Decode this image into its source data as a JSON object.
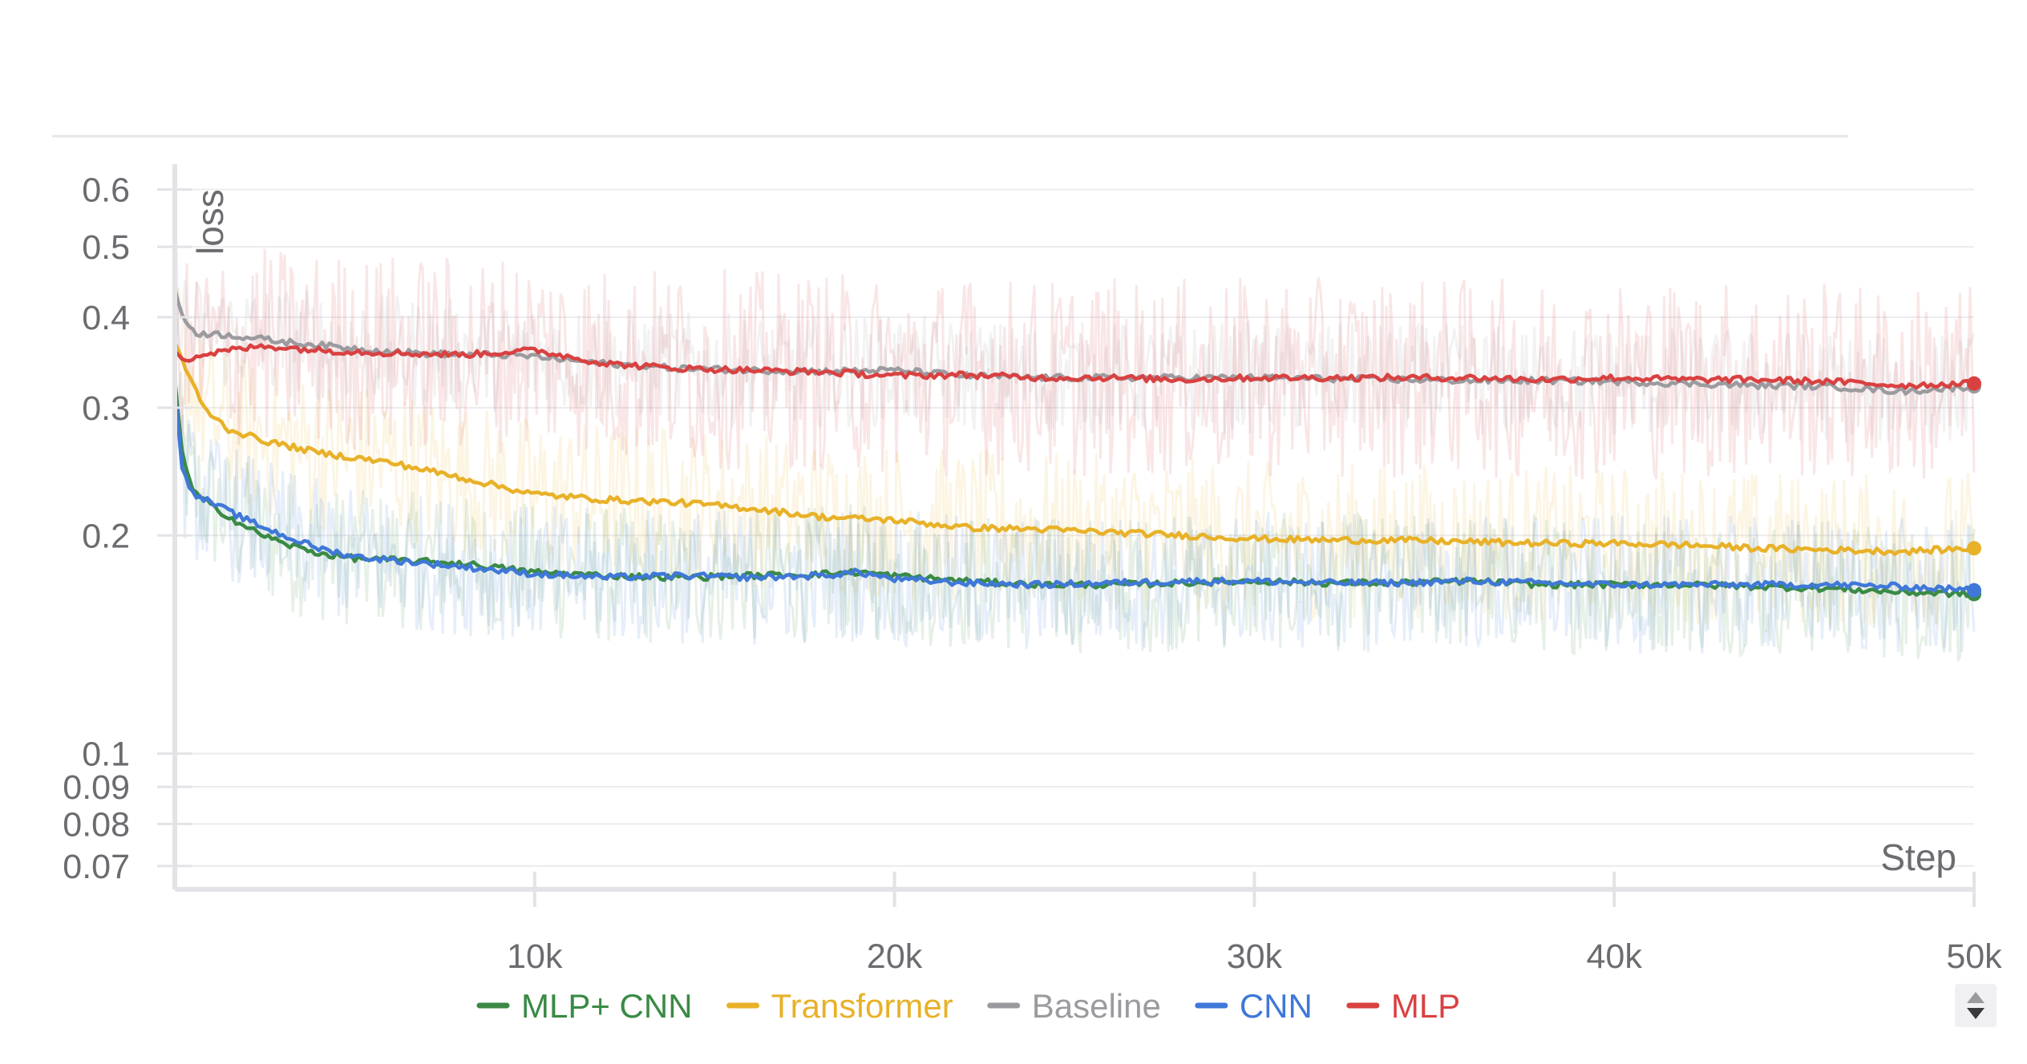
{
  "chart_data": {
    "type": "line",
    "title": "",
    "xlabel": "Step",
    "ylabel": "loss",
    "xlim": [
      0,
      50000
    ],
    "ylim": [
      0.065,
      0.65
    ],
    "yscale": "log",
    "grid": true,
    "x_ticks": [
      {
        "value": 10000,
        "label": "10k"
      },
      {
        "value": 20000,
        "label": "20k"
      },
      {
        "value": 30000,
        "label": "30k"
      },
      {
        "value": 40000,
        "label": "40k"
      },
      {
        "value": 50000,
        "label": "50k"
      }
    ],
    "y_ticks": [
      {
        "value": 0.6,
        "label": "0.6"
      },
      {
        "value": 0.5,
        "label": "0.5"
      },
      {
        "value": 0.4,
        "label": "0.4"
      },
      {
        "value": 0.3,
        "label": "0.3"
      },
      {
        "value": 0.2,
        "label": "0.2"
      },
      {
        "value": 0.1,
        "label": "0.1"
      },
      {
        "value": 0.09,
        "label": "0.09"
      },
      {
        "value": 0.08,
        "label": "0.08"
      },
      {
        "value": 0.07,
        "label": "0.07"
      }
    ],
    "legend_position": "bottom",
    "series": [
      {
        "name": "MLP+ CNN",
        "color": "#3a8a45",
        "x": [
          0,
          200,
          500,
          1000,
          2000,
          3000,
          4000,
          5000,
          6000,
          8000,
          10000,
          12000,
          14000,
          16000,
          18000,
          19000,
          20000,
          22000,
          24000,
          26000,
          28000,
          30000,
          32000,
          34000,
          36000,
          38000,
          40000,
          42000,
          44000,
          46000,
          48000,
          50000
        ],
        "y": [
          0.33,
          0.26,
          0.23,
          0.22,
          0.205,
          0.195,
          0.189,
          0.186,
          0.185,
          0.183,
          0.178,
          0.176,
          0.175,
          0.176,
          0.177,
          0.178,
          0.176,
          0.173,
          0.171,
          0.171,
          0.172,
          0.173,
          0.172,
          0.172,
          0.173,
          0.171,
          0.171,
          0.171,
          0.17,
          0.169,
          0.167,
          0.166
        ]
      },
      {
        "name": "Transformer",
        "color": "#e8b128",
        "x": [
          0,
          300,
          800,
          1500,
          2500,
          4000,
          6000,
          8000,
          10000,
          12000,
          14000,
          16000,
          18000,
          20000,
          22000,
          24000,
          26000,
          28000,
          30000,
          32000,
          34000,
          36000,
          38000,
          40000,
          42000,
          44000,
          46000,
          48000,
          50000
        ],
        "y": [
          0.37,
          0.34,
          0.3,
          0.28,
          0.27,
          0.26,
          0.252,
          0.24,
          0.228,
          0.224,
          0.222,
          0.218,
          0.212,
          0.21,
          0.205,
          0.204,
          0.202,
          0.2,
          0.198,
          0.197,
          0.197,
          0.196,
          0.195,
          0.195,
          0.194,
          0.192,
          0.191,
          0.19,
          0.192
        ]
      },
      {
        "name": "Baseline",
        "color": "#9b9b9f",
        "x": [
          0,
          200,
          600,
          1500,
          3000,
          5000,
          7000,
          9000,
          10000,
          12000,
          14000,
          16000,
          18000,
          20000,
          22000,
          24000,
          26000,
          28000,
          30000,
          32000,
          34000,
          36000,
          38000,
          40000,
          42000,
          44000,
          46000,
          48000,
          50000
        ],
        "y": [
          0.44,
          0.4,
          0.38,
          0.378,
          0.37,
          0.362,
          0.356,
          0.355,
          0.353,
          0.345,
          0.34,
          0.338,
          0.337,
          0.338,
          0.332,
          0.33,
          0.33,
          0.33,
          0.33,
          0.329,
          0.328,
          0.327,
          0.327,
          0.326,
          0.324,
          0.322,
          0.321,
          0.316,
          0.321
        ]
      },
      {
        "name": "CNN",
        "color": "#3f78d8",
        "x": [
          0,
          200,
          500,
          1000,
          2000,
          3000,
          4000,
          5000,
          6000,
          8000,
          10000,
          12000,
          14000,
          16000,
          18000,
          19000,
          20000,
          22000,
          24000,
          26000,
          28000,
          30000,
          32000,
          34000,
          36000,
          38000,
          40000,
          42000,
          44000,
          46000,
          48000,
          50000
        ],
        "y": [
          0.32,
          0.25,
          0.228,
          0.222,
          0.21,
          0.2,
          0.192,
          0.187,
          0.185,
          0.181,
          0.177,
          0.175,
          0.176,
          0.175,
          0.176,
          0.178,
          0.174,
          0.172,
          0.171,
          0.172,
          0.173,
          0.173,
          0.172,
          0.172,
          0.173,
          0.172,
          0.171,
          0.171,
          0.171,
          0.171,
          0.17,
          0.168
        ]
      },
      {
        "name": "MLP",
        "color": "#d94141",
        "x": [
          0,
          300,
          800,
          1500,
          2500,
          4000,
          6000,
          8000,
          10000,
          12000,
          14000,
          16000,
          18000,
          20000,
          22000,
          24000,
          26000,
          28000,
          30000,
          32000,
          34000,
          36000,
          38000,
          40000,
          42000,
          44000,
          46000,
          48000,
          50000
        ],
        "y": [
          0.36,
          0.35,
          0.355,
          0.36,
          0.365,
          0.36,
          0.357,
          0.355,
          0.36,
          0.345,
          0.34,
          0.338,
          0.336,
          0.332,
          0.333,
          0.33,
          0.33,
          0.328,
          0.33,
          0.33,
          0.33,
          0.33,
          0.328,
          0.33,
          0.328,
          0.328,
          0.326,
          0.322,
          0.324
        ]
      }
    ]
  }
}
